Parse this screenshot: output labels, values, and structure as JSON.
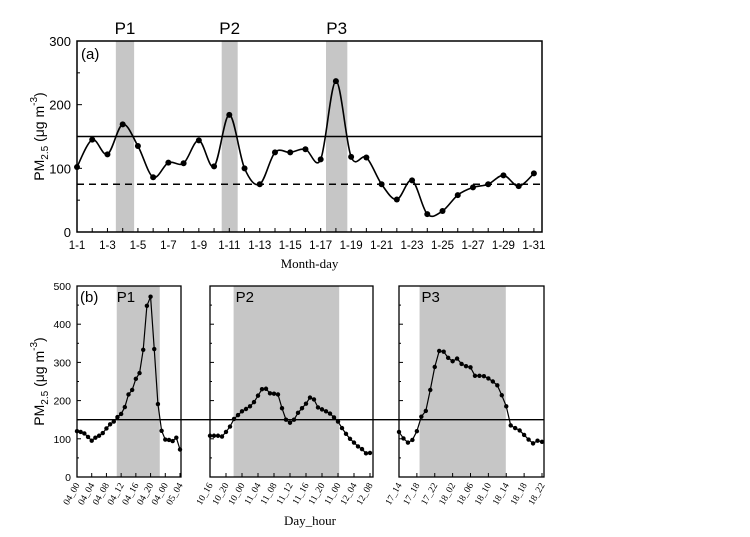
{
  "chart_data": [
    {
      "type": "line",
      "panel_label": "(a)",
      "xlabel": "Month-day",
      "ylabel": "PM",
      "ylabel_sub": "2.5",
      "ylabel_unit": " (μg m",
      "ylabel_sup": "-3",
      "ylabel_close": ")",
      "ylim": [
        0,
        300
      ],
      "yticks": [
        0,
        100,
        200,
        300
      ],
      "x": [
        1,
        2,
        3,
        4,
        5,
        6,
        7,
        8,
        9,
        10,
        11,
        12,
        13,
        14,
        15,
        16,
        17,
        18,
        19,
        20,
        21,
        22,
        23,
        24,
        25,
        26,
        27,
        28,
        29,
        30,
        31
      ],
      "xtick_labels": [
        "1-1",
        "1-3",
        "1-5",
        "1-7",
        "1-9",
        "1-11",
        "1-13",
        "1-15",
        "1-17",
        "1-19",
        "1-21",
        "1-23",
        "1-25",
        "1-27",
        "1-29",
        "1-31"
      ],
      "values": [
        102,
        145,
        122,
        169,
        135,
        86,
        109,
        108,
        144,
        103,
        184,
        100,
        75,
        125,
        125,
        130,
        114,
        237,
        118,
        117,
        75,
        51,
        81,
        28,
        33,
        58,
        70,
        75,
        89,
        72,
        92
      ],
      "reference_lines": [
        {
          "value": 150,
          "style": "solid"
        },
        {
          "value": 75,
          "style": "dashed"
        }
      ],
      "highlight_periods": [
        {
          "label": "P1",
          "from": 3.55,
          "to": 4.75
        },
        {
          "label": "P2",
          "from": 10.5,
          "to": 11.55
        },
        {
          "label": "P3",
          "from": 17.35,
          "to": 18.75
        }
      ]
    },
    {
      "type": "line",
      "panel_label": "(b)",
      "xlabel": "Day_hour",
      "ylabel": "PM",
      "ylabel_sub": "2.5",
      "ylabel_unit": " (μg m",
      "ylabel_sup": "-3",
      "ylabel_close": ")",
      "ylim": [
        0,
        500
      ],
      "yticks": [
        0,
        100,
        200,
        300,
        400,
        500
      ],
      "reference_line": 150,
      "panels": [
        {
          "label": "P1",
          "xtick_labels": [
            "04_00",
            "04_04",
            "04_08",
            "04_12",
            "04_16",
            "04_20",
            "04_00",
            "05_04"
          ],
          "values": [
            120,
            118,
            114,
            105,
            95,
            103,
            108,
            115,
            127,
            138,
            145,
            157,
            165,
            183,
            216,
            228,
            257,
            272,
            333,
            448,
            472,
            335,
            191,
            121,
            98,
            97,
            94,
            103,
            72
          ],
          "shade_hours": [
            10.8,
            22.5
          ]
        },
        {
          "label": "P2",
          "xtick_labels": [
            "10_16",
            "10_20",
            "10_00",
            "11_04",
            "11_08",
            "11_12",
            "11_16",
            "11_20",
            "11_00",
            "12_04",
            "12_08"
          ],
          "values": [
            108,
            108,
            108,
            106,
            118,
            132,
            152,
            162,
            172,
            178,
            185,
            196,
            213,
            230,
            231,
            219,
            218,
            216,
            180,
            150,
            142,
            150,
            168,
            180,
            192,
            208,
            203,
            182,
            177,
            172,
            166,
            156,
            145,
            128,
            113,
            100,
            90,
            80,
            73,
            62,
            63
          ],
          "shade_hours": [
            5.9,
            32.3
          ]
        },
        {
          "label": "P3",
          "xtick_labels": [
            "17_14",
            "17_18",
            "17_22",
            "18_02",
            "18_06",
            "18_10",
            "18_14",
            "18_18",
            "18_22"
          ],
          "values": [
            118,
            101,
            90,
            97,
            120,
            158,
            173,
            228,
            288,
            330,
            328,
            312,
            303,
            310,
            296,
            290,
            287,
            265,
            265,
            264,
            258,
            250,
            240,
            214,
            185,
            135,
            128,
            122,
            110,
            98,
            88,
            95,
            92
          ],
          "shade_hours": [
            4.6,
            23.9
          ]
        }
      ]
    }
  ]
}
